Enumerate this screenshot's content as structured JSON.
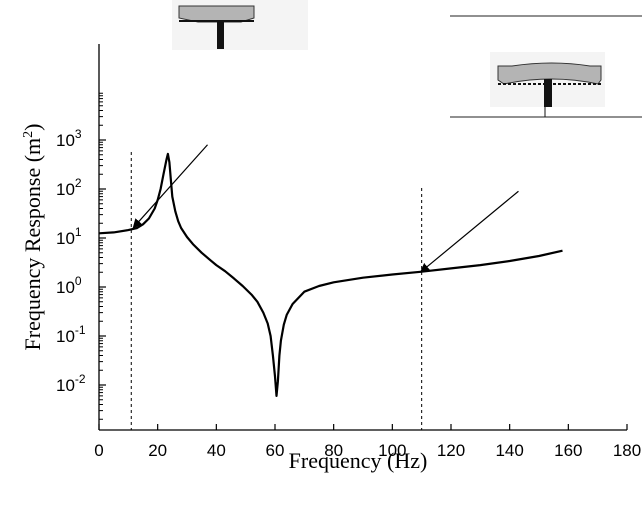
{
  "chart_data": {
    "type": "line",
    "title": "",
    "xlabel": "Frequency (Hz)",
    "ylabel_text": "Frequency Response (m",
    "ylabel_sup": "2",
    "ylabel_close": ")",
    "xlim": [
      0,
      180
    ],
    "ylim": [
      0.002,
      2000
    ],
    "yscale": "log",
    "grid": false,
    "x_ticks": [
      0,
      20,
      40,
      60,
      80,
      100,
      120,
      140,
      160,
      180
    ],
    "x_tick_labels": [
      "0",
      "20",
      "40",
      "60",
      "80",
      "100",
      "120",
      "140",
      "160",
      "180"
    ],
    "y_ticks": [
      0.01,
      0.1,
      1,
      10,
      100,
      1000
    ],
    "y_tick_labels": [
      {
        "base": "10",
        "exp": "-2"
      },
      {
        "base": "10",
        "exp": "-1"
      },
      {
        "base": "10",
        "exp": "0"
      },
      {
        "base": "10",
        "exp": "1"
      },
      {
        "base": "10",
        "exp": "2"
      },
      {
        "base": "10",
        "exp": "3"
      }
    ],
    "series": [
      {
        "x": [
          0,
          5,
          10,
          13,
          15,
          17,
          19,
          20,
          21,
          22,
          23,
          23.5,
          24,
          24.5,
          25,
          26,
          27,
          28,
          30,
          32,
          35,
          38,
          40,
          43,
          46,
          49,
          52,
          54,
          56,
          57.5,
          58.5,
          59.3,
          60,
          60.5,
          61,
          61.5,
          62,
          63,
          64,
          66,
          70,
          75,
          80,
          90,
          100,
          110,
          120,
          130,
          140,
          150,
          158
        ],
        "y": [
          12.5,
          13,
          14.5,
          16,
          19,
          25,
          40,
          60,
          100,
          200,
          400,
          520,
          350,
          150,
          70,
          35,
          22,
          16,
          10.5,
          7.5,
          5,
          3.5,
          2.8,
          2.1,
          1.5,
          1.05,
          0.7,
          0.5,
          0.3,
          0.18,
          0.1,
          0.04,
          0.015,
          0.006,
          0.012,
          0.04,
          0.08,
          0.17,
          0.27,
          0.45,
          0.8,
          1.05,
          1.25,
          1.55,
          1.8,
          2.05,
          2.4,
          2.8,
          3.4,
          4.3,
          5.5
        ]
      }
    ],
    "markers": [
      11,
      110
    ],
    "annotations": [
      {
        "from": [
          12,
          17
        ],
        "to": [
          37,
          800
        ]
      },
      {
        "from": [
          110,
          2.1
        ],
        "to": [
          143,
          90
        ]
      }
    ]
  }
}
